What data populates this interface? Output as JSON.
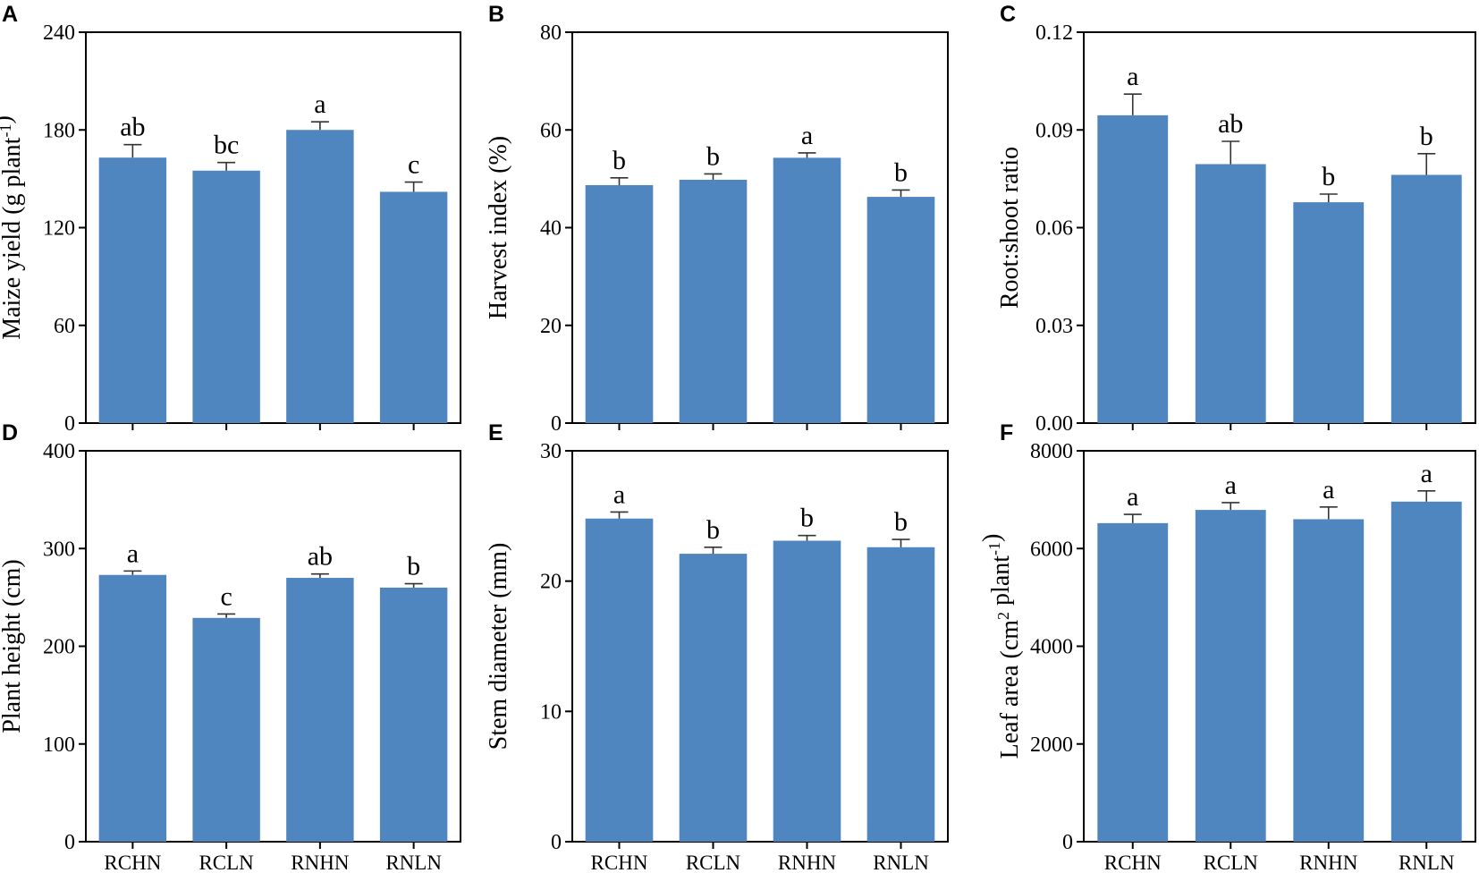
{
  "colors": {
    "bar": "#4f86c0",
    "axis": "#000000",
    "error": "#333333"
  },
  "chart_data": [
    {
      "type": "bar",
      "panel": "A",
      "categories": [
        "RCHN",
        "RCLN",
        "RNHN",
        "RNLN"
      ],
      "values": [
        163,
        155,
        180,
        142
      ],
      "errors": [
        8,
        5,
        5,
        6
      ],
      "significance": [
        "ab",
        "bc",
        "a",
        "c"
      ],
      "ylabel_main": "Maize yield (g plant",
      "ylabel_sup": "-1",
      "ylabel_tail": ")",
      "ylim": [
        0,
        240
      ],
      "yticks": [
        0,
        60,
        120,
        180,
        240
      ],
      "ytick_labels": [
        "0",
        "60",
        "120",
        "180",
        "240"
      ],
      "show_categories": false
    },
    {
      "type": "bar",
      "panel": "B",
      "categories": [
        "RCHN",
        "RCLN",
        "RNHN",
        "RNLN"
      ],
      "values": [
        48.7,
        49.8,
        54.3,
        46.3
      ],
      "errors": [
        1.5,
        1.2,
        1.0,
        1.4
      ],
      "significance": [
        "b",
        "b",
        "a",
        "b"
      ],
      "ylabel_main": "Harvest index (%)",
      "ylabel_sup": "",
      "ylabel_tail": "",
      "ylim": [
        0,
        80
      ],
      "yticks": [
        0,
        20,
        40,
        60,
        80
      ],
      "ytick_labels": [
        "0",
        "20",
        "40",
        "60",
        "80"
      ],
      "show_categories": false
    },
    {
      "type": "bar",
      "panel": "C",
      "categories": [
        "RCHN",
        "RCLN",
        "RNHN",
        "RNLN"
      ],
      "values": [
        0.0945,
        0.0795,
        0.0678,
        0.0762
      ],
      "errors": [
        0.0065,
        0.007,
        0.0025,
        0.0065
      ],
      "significance": [
        "a",
        "ab",
        "b",
        "b"
      ],
      "ylabel_main": "Root:shoot ratio",
      "ylabel_sup": "",
      "ylabel_tail": "",
      "ylim": [
        0,
        0.12
      ],
      "yticks": [
        0,
        0.03,
        0.06,
        0.09,
        0.12
      ],
      "ytick_labels": [
        "0.00",
        "0.03",
        "0.06",
        "0.09",
        "0.12"
      ],
      "show_categories": false
    },
    {
      "type": "bar",
      "panel": "D",
      "categories": [
        "RCHN",
        "RCLN",
        "RNHN",
        "RNLN"
      ],
      "values": [
        273,
        229,
        270,
        260
      ],
      "errors": [
        4,
        4,
        4,
        4
      ],
      "significance": [
        "a",
        "c",
        "ab",
        "b"
      ],
      "ylabel_main": "Plant height (cm)",
      "ylabel_sup": "",
      "ylabel_tail": "",
      "ylim": [
        0,
        400
      ],
      "yticks": [
        0,
        100,
        200,
        300,
        400
      ],
      "ytick_labels": [
        "0",
        "100",
        "200",
        "300",
        "400"
      ],
      "show_categories": true
    },
    {
      "type": "bar",
      "panel": "E",
      "categories": [
        "RCHN",
        "RCLN",
        "RNHN",
        "RNLN"
      ],
      "values": [
        24.8,
        22.1,
        23.1,
        22.6
      ],
      "errors": [
        0.5,
        0.5,
        0.4,
        0.6
      ],
      "significance": [
        "a",
        "b",
        "b",
        "b"
      ],
      "ylabel_main": "Stem diameter (mm)",
      "ylabel_sup": "",
      "ylabel_tail": "",
      "ylim": [
        0,
        30
      ],
      "yticks": [
        0,
        10,
        20,
        30
      ],
      "ytick_labels": [
        "0",
        "10",
        "20",
        "30"
      ],
      "show_categories": true
    },
    {
      "type": "bar",
      "panel": "F",
      "categories": [
        "RCHN",
        "RCLN",
        "RNHN",
        "RNLN"
      ],
      "values": [
        6520,
        6790,
        6600,
        6960
      ],
      "errors": [
        180,
        150,
        250,
        220
      ],
      "significance": [
        "a",
        "a",
        "a",
        "a"
      ],
      "ylabel_main": "Leaf area (cm",
      "ylabel_sup": "2",
      "ylabel_mid": " plant",
      "ylabel_sup2": "-1",
      "ylabel_tail": ")",
      "ylim": [
        0,
        8000
      ],
      "yticks": [
        0,
        2000,
        4000,
        6000,
        8000
      ],
      "ytick_labels": [
        "0",
        "2000",
        "4000",
        "6000",
        "8000"
      ],
      "show_categories": true
    }
  ]
}
